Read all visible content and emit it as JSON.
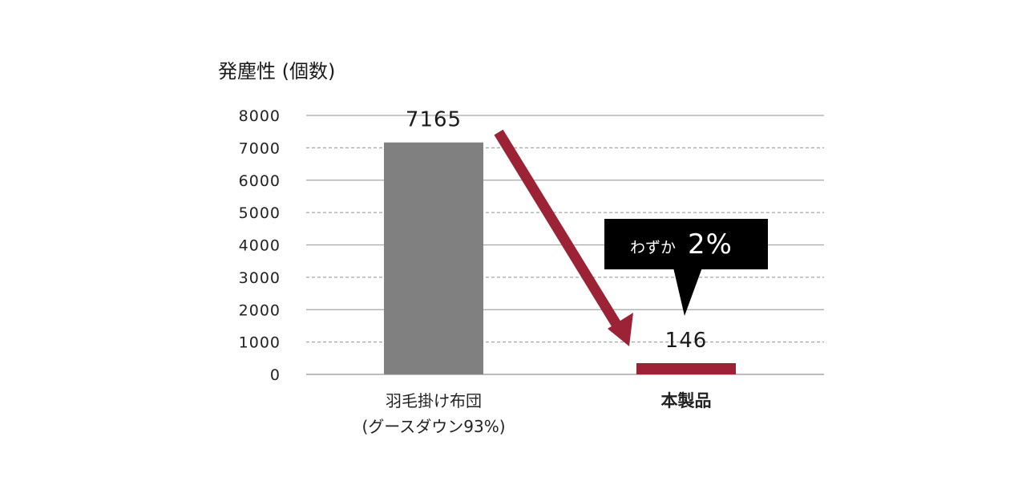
{
  "colors": {
    "bar_default": "#808080",
    "bar_highlight": "#9b2335",
    "arrow": "#9b2335",
    "grid": "#a6a6a6",
    "callout_bg": "#000000",
    "callout_text": "#ffffff"
  },
  "chart_data": {
    "type": "bar",
    "ylabel": "発塵性 (個数)",
    "ylim": [
      0,
      8000
    ],
    "yticks": [
      0,
      1000,
      2000,
      3000,
      4000,
      5000,
      6000,
      7000,
      8000
    ],
    "grid": "horizontal (solid at even thousands, dashed at odd thousands)",
    "categories": [
      {
        "lines": [
          "羽毛掛け布団",
          "(グースダウン93%)"
        ],
        "highlight": false
      },
      {
        "lines": [
          "本製品"
        ],
        "highlight": true
      }
    ],
    "values": [
      7165,
      146
    ],
    "value_labels": [
      "7165",
      "146"
    ],
    "annotation": {
      "type": "arrow",
      "from_category": 0,
      "to_category": 1,
      "callout_small": "わずか",
      "callout_big": "2%"
    }
  }
}
